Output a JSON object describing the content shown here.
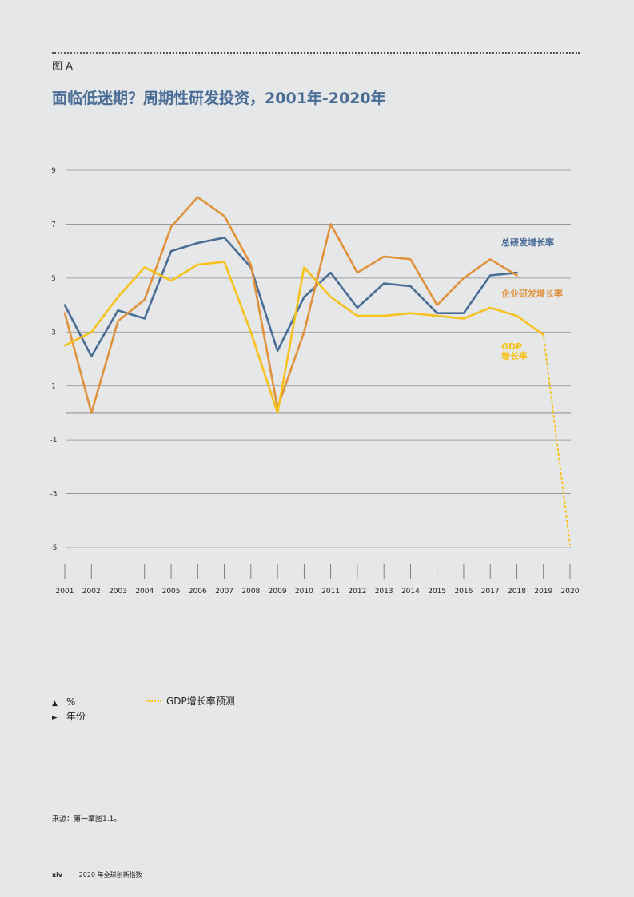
{
  "figure_label": "图 A",
  "title": "面临低迷期？周期性研发投资，2001年-2020年",
  "legend": {
    "y_axis_marker": "▲",
    "y_axis_label": "%",
    "x_axis_marker": "►",
    "x_axis_label": "年份",
    "forecast_label": "GDP增长率预测"
  },
  "source": "来源：第一章图1.1。",
  "footer": {
    "page": "xiv",
    "publication": "2020 年全球创新指数"
  },
  "colors": {
    "total_rd": "#4a6d96",
    "business_rd": "#e0913a",
    "gdp": "#f7c21b",
    "gridline": "#8c8c8c",
    "zero_line": "#b7b7b7"
  },
  "chart_data": {
    "type": "line",
    "x": [
      "2001",
      "2002",
      "2003",
      "2004",
      "2005",
      "2006",
      "2007",
      "2008",
      "2009",
      "2010",
      "2011",
      "2012",
      "2013",
      "2014",
      "2015",
      "2016",
      "2017",
      "2018",
      "2019",
      "2020"
    ],
    "ylim": [
      -5,
      9
    ],
    "yticks": [
      9,
      7,
      5,
      3,
      1,
      -1,
      -3,
      -5
    ],
    "grid": true,
    "series": [
      {
        "name": "总研发增长率",
        "label_line1": "总研发增长率",
        "label_line2": "",
        "color_key": "total_rd",
        "values": [
          4.0,
          2.1,
          3.8,
          3.5,
          6.0,
          6.3,
          6.5,
          5.4,
          2.3,
          4.3,
          5.2,
          3.9,
          4.8,
          4.7,
          3.7,
          3.7,
          5.1,
          5.2,
          null,
          null
        ],
        "dashed": false
      },
      {
        "name": "企业研发增长率",
        "label_line1": "企业研发增长率",
        "label_line2": "",
        "color_key": "business_rd",
        "values": [
          3.7,
          0.0,
          3.4,
          4.2,
          6.9,
          8.0,
          7.3,
          5.5,
          0.2,
          3.0,
          7.0,
          5.2,
          5.8,
          5.7,
          4.0,
          5.0,
          5.7,
          5.1,
          null,
          null
        ],
        "dashed": false
      },
      {
        "name": "GDP增长率",
        "label_line1": "GDP",
        "label_line2": "增长率",
        "color_key": "gdp",
        "values": [
          2.5,
          3.0,
          4.3,
          5.4,
          4.9,
          5.5,
          5.6,
          3.0,
          0.0,
          5.4,
          4.3,
          3.6,
          3.6,
          3.7,
          3.6,
          3.5,
          3.9,
          3.6,
          2.9,
          null
        ],
        "dashed": false
      },
      {
        "name": "GDP增长率预测",
        "color_key": "gdp",
        "values": [
          null,
          null,
          null,
          null,
          null,
          null,
          null,
          null,
          null,
          null,
          null,
          null,
          null,
          null,
          null,
          null,
          null,
          null,
          2.9,
          -4.9
        ],
        "dashed": true
      }
    ]
  }
}
